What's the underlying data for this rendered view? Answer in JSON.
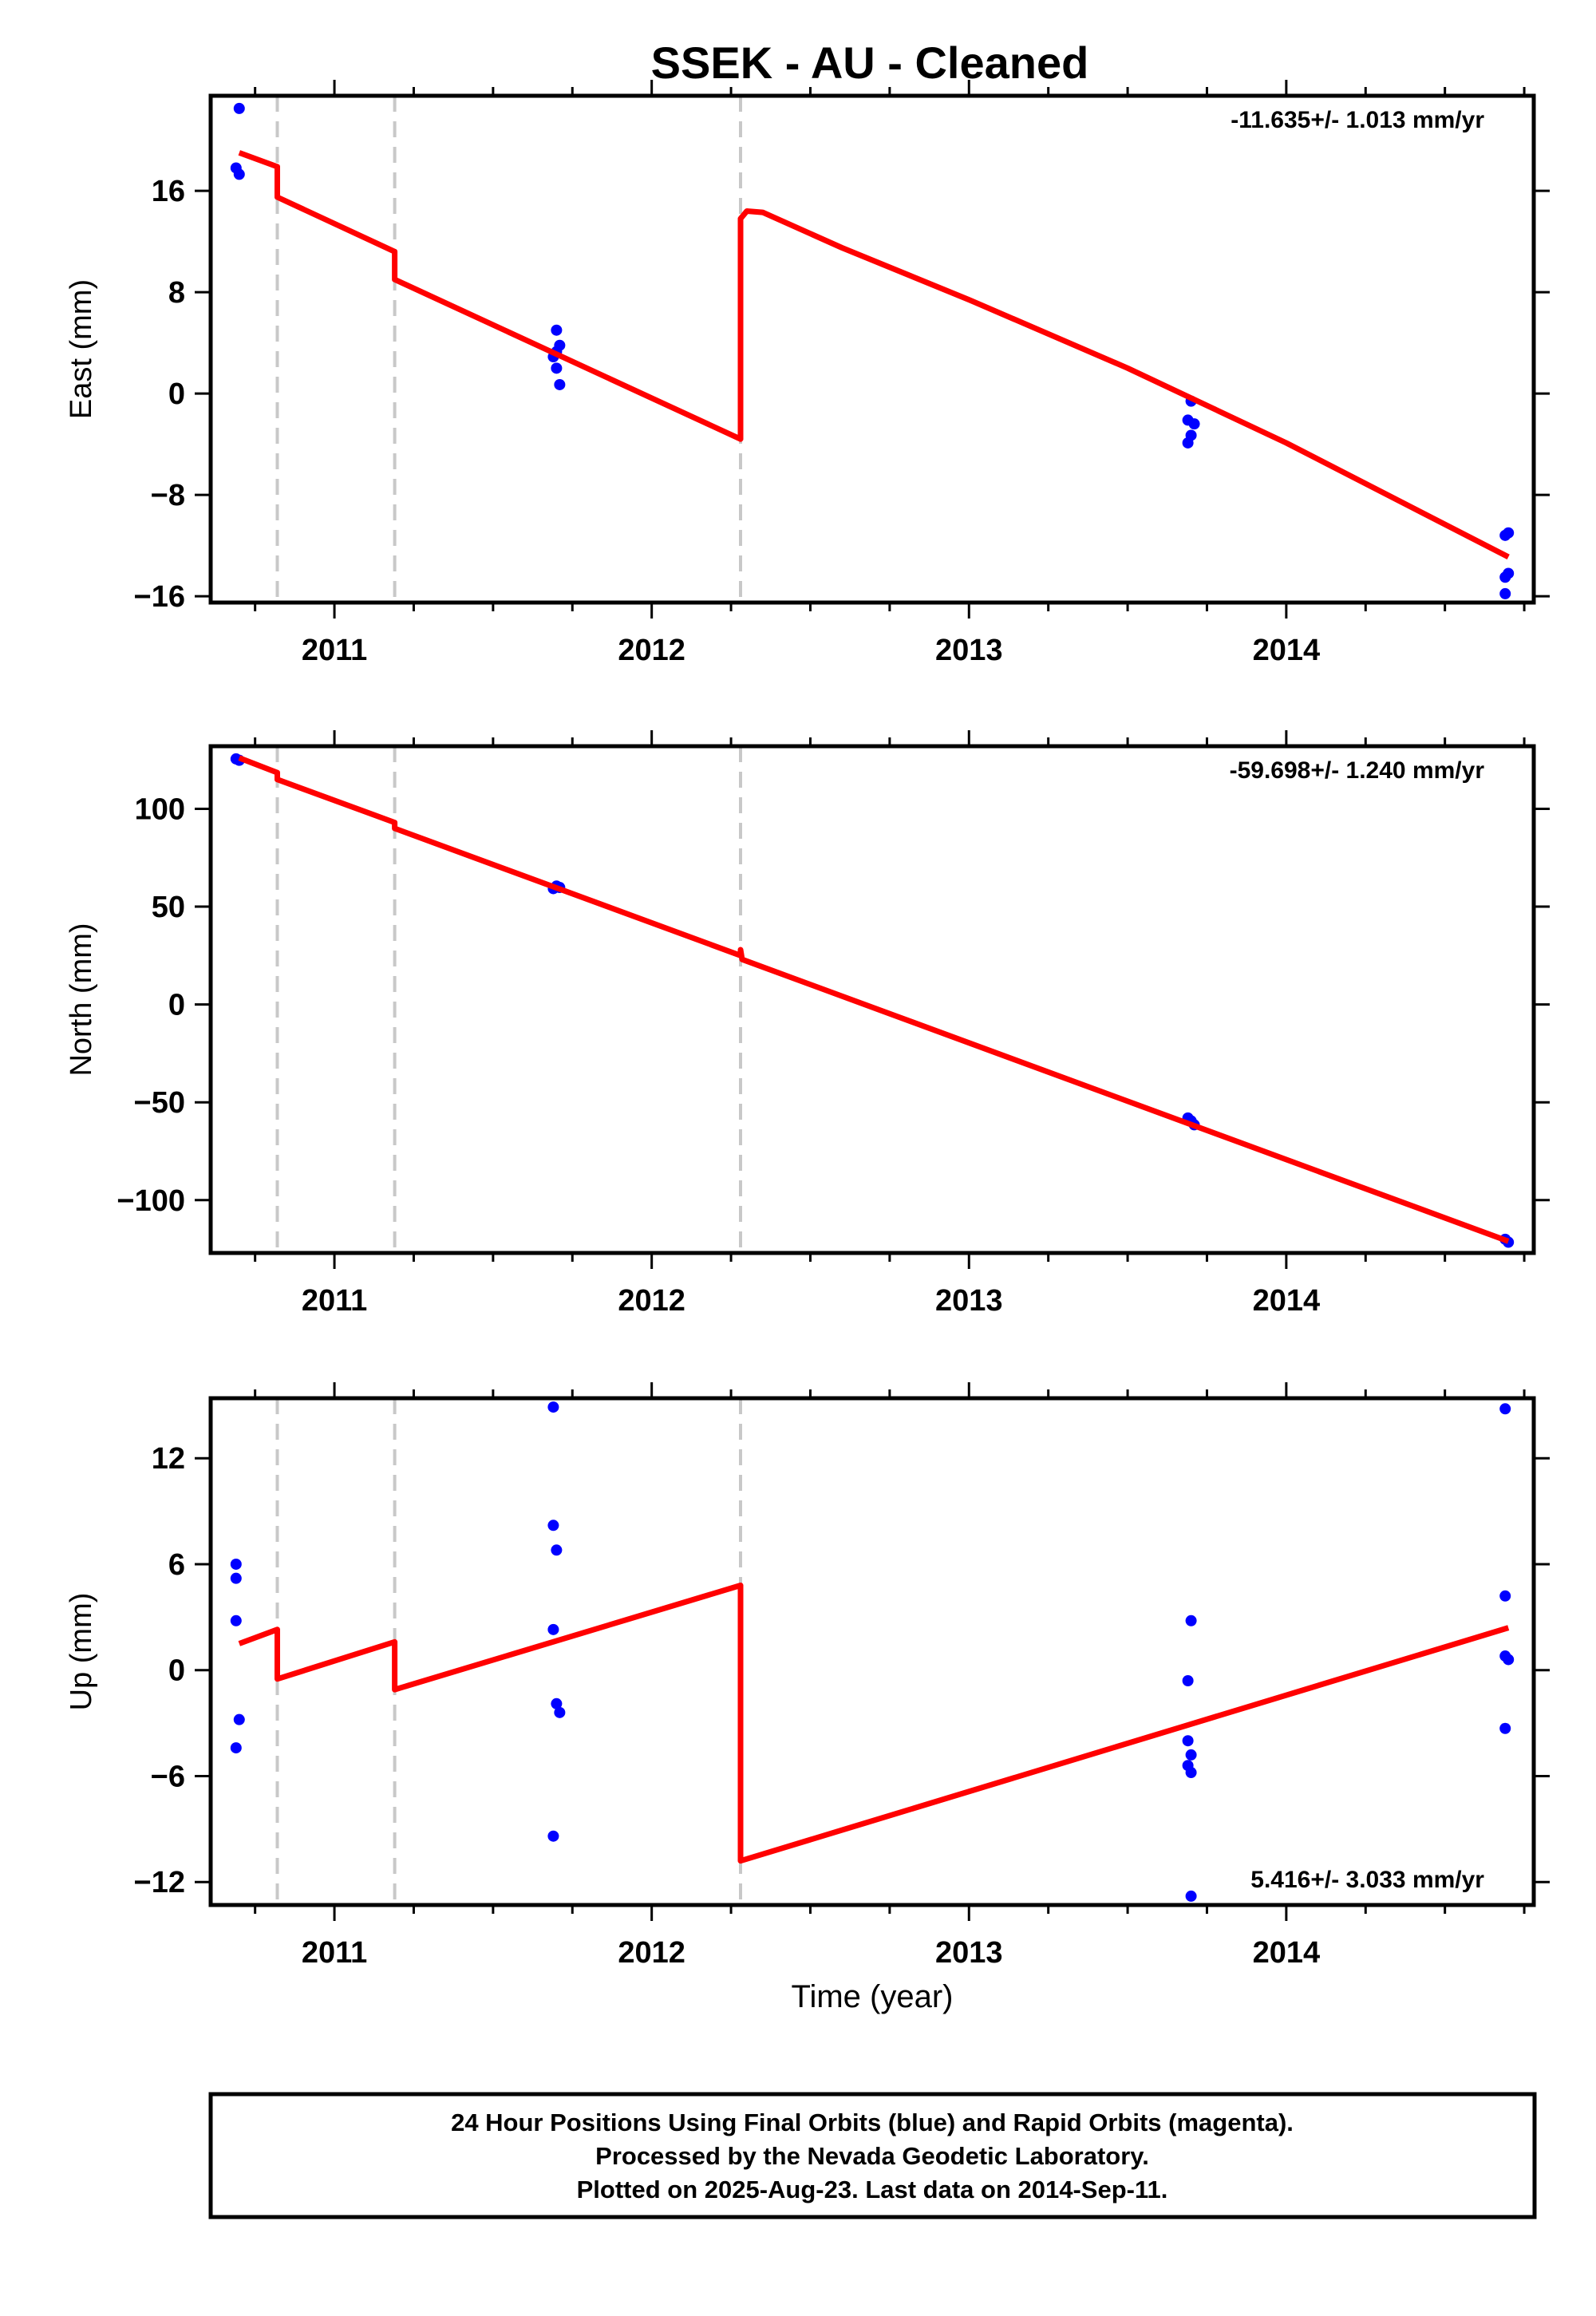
{
  "title": "SSEK  - AU - Cleaned",
  "xlabel": "Time (year)",
  "footer": [
    "24 Hour Positions Using Final Orbits (blue) and Rapid Orbits (magenta).",
    "Processed by the Nevada Geodetic Laboratory.",
    "Plotted on 2025-Aug-23. Last data on 2014-Sep-11."
  ],
  "colors": {
    "data": "#0000ff",
    "model": "#ff0000",
    "breaks": "#c8c8c8"
  },
  "chart_data": [
    {
      "type": "scatter",
      "ylabel": "East (mm)",
      "rate_label": "-11.635+/- 1.013 mm/yr",
      "xlim": [
        2010.61,
        2014.78
      ],
      "ylim": [
        -16.5,
        23.5
      ],
      "x_ticks": [
        2011,
        2012,
        2013,
        2014
      ],
      "y_ticks": [
        16,
        8,
        0,
        -8,
        -16
      ],
      "break_lines": [
        2010.82,
        2011.19,
        2012.28
      ],
      "series": [
        {
          "points": [
            [
              2010.7,
              22.5
            ],
            [
              2010.69,
              17.8
            ],
            [
              2010.7,
              17.3
            ],
            [
              2011.7,
              5.0
            ],
            [
              2011.71,
              3.8
            ],
            [
              2011.7,
              3.3
            ],
            [
              2011.69,
              2.9
            ],
            [
              2011.7,
              2.0
            ],
            [
              2011.71,
              0.7
            ],
            [
              2013.7,
              -0.6
            ],
            [
              2013.69,
              -2.1
            ],
            [
              2013.71,
              -2.4
            ],
            [
              2013.7,
              -3.3
            ],
            [
              2013.69,
              -3.9
            ],
            [
              2014.69,
              -11.2
            ],
            [
              2014.7,
              -11.0
            ],
            [
              2014.69,
              -14.5
            ],
            [
              2014.7,
              -14.2
            ],
            [
              2014.69,
              -15.8
            ]
          ]
        },
        {
          "model": [
            [
              2010.7,
              19.0
            ],
            [
              2010.82,
              17.9
            ],
            [
              2010.82,
              15.5
            ],
            [
              2011.19,
              11.2
            ],
            [
              2011.19,
              9.0
            ],
            [
              2012.28,
              -3.6
            ],
            [
              2012.28,
              13.8
            ],
            [
              2012.3,
              14.4
            ],
            [
              2012.35,
              14.3
            ],
            [
              2012.6,
              11.5
            ],
            [
              2013.0,
              7.4
            ],
            [
              2013.5,
              2.0
            ],
            [
              2014.0,
              -3.9
            ],
            [
              2014.7,
              -12.9
            ]
          ]
        }
      ]
    },
    {
      "type": "scatter",
      "ylabel": "North (mm)",
      "rate_label": "-59.698+/- 1.240 mm/yr",
      "xlim": [
        2010.61,
        2014.78
      ],
      "ylim": [
        -127,
        132
      ],
      "x_ticks": [
        2011,
        2012,
        2013,
        2014
      ],
      "y_ticks": [
        100,
        50,
        0,
        -50,
        -100
      ],
      "break_lines": [
        2010.82,
        2011.19,
        2012.28
      ],
      "series": [
        {
          "points": [
            [
              2010.69,
              125.5
            ],
            [
              2010.7,
              124.8
            ],
            [
              2011.7,
              60.5
            ],
            [
              2011.71,
              59.8
            ],
            [
              2011.69,
              59.2
            ],
            [
              2013.69,
              -58.0
            ],
            [
              2013.7,
              -59.5
            ],
            [
              2013.71,
              -61.5
            ],
            [
              2014.69,
              -120.0
            ],
            [
              2014.7,
              -121.5
            ]
          ]
        },
        {
          "model": [
            [
              2010.7,
              126.0
            ],
            [
              2010.82,
              118.5
            ],
            [
              2010.82,
              115.0
            ],
            [
              2011.19,
              93.0
            ],
            [
              2011.19,
              90.0
            ],
            [
              2012.28,
              25.0
            ],
            [
              2012.28,
              28.0
            ],
            [
              2012.285,
              23.0
            ],
            [
              2014.7,
              -121.0
            ]
          ]
        }
      ]
    },
    {
      "type": "scatter",
      "ylabel": "Up (mm)",
      "rate_label": "5.416+/- 3.033 mm/yr",
      "xlim": [
        2010.61,
        2014.78
      ],
      "ylim": [
        -13.3,
        15.4
      ],
      "x_ticks": [
        2011,
        2012,
        2013,
        2014
      ],
      "y_ticks": [
        12,
        6,
        0,
        -6,
        -12
      ],
      "break_lines": [
        2010.82,
        2011.19,
        2012.28
      ],
      "series": [
        {
          "points": [
            [
              2010.69,
              6.0
            ],
            [
              2010.69,
              5.2
            ],
            [
              2010.69,
              2.8
            ],
            [
              2010.7,
              -2.8
            ],
            [
              2010.69,
              -4.4
            ],
            [
              2011.69,
              14.9
            ],
            [
              2011.69,
              8.2
            ],
            [
              2011.7,
              6.8
            ],
            [
              2011.69,
              2.3
            ],
            [
              2011.7,
              -1.9
            ],
            [
              2011.71,
              -2.4
            ],
            [
              2011.69,
              -9.4
            ],
            [
              2013.7,
              2.8
            ],
            [
              2013.69,
              -0.6
            ],
            [
              2013.69,
              -4.0
            ],
            [
              2013.7,
              -4.8
            ],
            [
              2013.69,
              -5.4
            ],
            [
              2013.7,
              -5.8
            ],
            [
              2013.7,
              -12.8
            ],
            [
              2014.69,
              14.8
            ],
            [
              2014.69,
              4.2
            ],
            [
              2014.69,
              0.8
            ],
            [
              2014.7,
              0.6
            ],
            [
              2014.69,
              -3.3
            ]
          ]
        },
        {
          "model": [
            [
              2010.7,
              1.5
            ],
            [
              2010.82,
              2.3
            ],
            [
              2010.82,
              -0.5
            ],
            [
              2011.19,
              1.6
            ],
            [
              2011.19,
              -1.1
            ],
            [
              2012.28,
              4.8
            ],
            [
              2012.28,
              -10.8
            ],
            [
              2014.7,
              2.4
            ]
          ]
        }
      ]
    }
  ]
}
